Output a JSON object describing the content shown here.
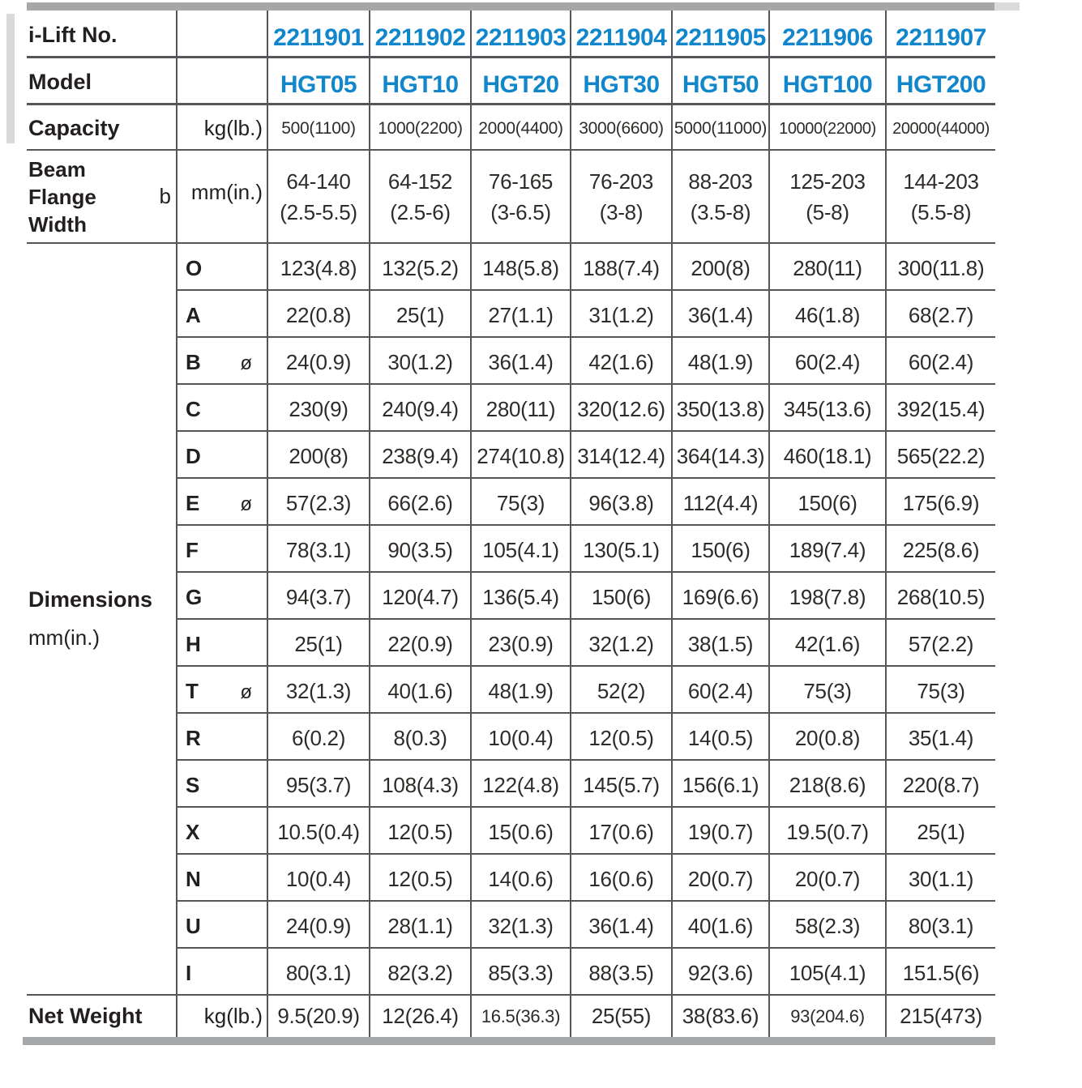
{
  "colors": {
    "accent_blue": "#1186cb",
    "text_black": "#231f20",
    "border_gray": "#55565a",
    "thick_bar_gray": "#a6a7a9",
    "edge_light_gray": "#d9dadb"
  },
  "symbols": {
    "diameter": "ø"
  },
  "table": {
    "header_rows": [
      {
        "label": "i-Lift No.",
        "unit": "",
        "values": [
          "2211901",
          "2211902",
          "2211903",
          "2211904",
          "2211905",
          "2211906",
          "2211907"
        ]
      },
      {
        "label": "Model",
        "unit": "",
        "values": [
          "HGT05",
          "HGT10",
          "HGT20",
          "HGT30",
          "HGT50",
          "HGT100",
          "HGT200"
        ]
      }
    ],
    "capacity": {
      "label": "Capacity",
      "unit": "kg(lb.)",
      "values": [
        "500(1100)",
        "1000(2200)",
        "2000(4400)",
        "3000(6600)",
        "5000(11000)",
        "10000(22000)",
        "20000(44000)"
      ]
    },
    "beam": {
      "lines": [
        "Beam",
        "Flange",
        "Width"
      ],
      "b": "b",
      "unit": "mm(in.)",
      "values": [
        [
          "64-140",
          "(2.5-5.5)"
        ],
        [
          "64-152",
          "(2.5-6)"
        ],
        [
          "76-165",
          "(3-6.5)"
        ],
        [
          "76-203",
          "(3-8)"
        ],
        [
          "88-203",
          "(3.5-8)"
        ],
        [
          "125-203",
          "(5-8)"
        ],
        [
          "144-203",
          "(5.5-8)"
        ]
      ]
    },
    "dimensions": {
      "label": "Dimensions",
      "unit": "mm(in.)",
      "rows": [
        {
          "letter": "O",
          "dia": false,
          "values": [
            "123(4.8)",
            "132(5.2)",
            "148(5.8)",
            "188(7.4)",
            "200(8)",
            "280(11)",
            "300(11.8)"
          ]
        },
        {
          "letter": "A",
          "dia": false,
          "values": [
            "22(0.8)",
            "25(1)",
            "27(1.1)",
            "31(1.2)",
            "36(1.4)",
            "46(1.8)",
            "68(2.7)"
          ]
        },
        {
          "letter": "B",
          "dia": true,
          "values": [
            "24(0.9)",
            "30(1.2)",
            "36(1.4)",
            "42(1.6)",
            "48(1.9)",
            "60(2.4)",
            "60(2.4)"
          ]
        },
        {
          "letter": "C",
          "dia": false,
          "values": [
            "230(9)",
            "240(9.4)",
            "280(11)",
            "320(12.6)",
            "350(13.8)",
            "345(13.6)",
            "392(15.4)"
          ]
        },
        {
          "letter": "D",
          "dia": false,
          "values": [
            "200(8)",
            "238(9.4)",
            "274(10.8)",
            "314(12.4)",
            "364(14.3)",
            "460(18.1)",
            "565(22.2)"
          ]
        },
        {
          "letter": "E",
          "dia": true,
          "values": [
            "57(2.3)",
            "66(2.6)",
            "75(3)",
            "96(3.8)",
            "112(4.4)",
            "150(6)",
            "175(6.9)"
          ]
        },
        {
          "letter": "F",
          "dia": false,
          "values": [
            "78(3.1)",
            "90(3.5)",
            "105(4.1)",
            "130(5.1)",
            "150(6)",
            "189(7.4)",
            "225(8.6)"
          ]
        },
        {
          "letter": "G",
          "dia": false,
          "values": [
            "94(3.7)",
            "120(4.7)",
            "136(5.4)",
            "150(6)",
            "169(6.6)",
            "198(7.8)",
            "268(10.5)"
          ]
        },
        {
          "letter": "H",
          "dia": false,
          "values": [
            "25(1)",
            "22(0.9)",
            "23(0.9)",
            "32(1.2)",
            "38(1.5)",
            "42(1.6)",
            "57(2.2)"
          ]
        },
        {
          "letter": "T",
          "dia": true,
          "values": [
            "32(1.3)",
            "40(1.6)",
            "48(1.9)",
            "52(2)",
            "60(2.4)",
            "75(3)",
            "75(3)"
          ]
        },
        {
          "letter": "R",
          "dia": false,
          "values": [
            "6(0.2)",
            "8(0.3)",
            "10(0.4)",
            "12(0.5)",
            "14(0.5)",
            "20(0.8)",
            "35(1.4)"
          ]
        },
        {
          "letter": "S",
          "dia": false,
          "values": [
            "95(3.7)",
            "108(4.3)",
            "122(4.8)",
            "145(5.7)",
            "156(6.1)",
            "218(8.6)",
            "220(8.7)"
          ]
        },
        {
          "letter": "X",
          "dia": false,
          "values": [
            "10.5(0.4)",
            "12(0.5)",
            "15(0.6)",
            "17(0.6)",
            "19(0.7)",
            "19.5(0.7)",
            "25(1)"
          ]
        },
        {
          "letter": "N",
          "dia": false,
          "values": [
            "10(0.4)",
            "12(0.5)",
            "14(0.6)",
            "16(0.6)",
            "20(0.7)",
            "20(0.7)",
            "30(1.1)"
          ]
        },
        {
          "letter": "U",
          "dia": false,
          "values": [
            "24(0.9)",
            "28(1.1)",
            "32(1.3)",
            "36(1.4)",
            "40(1.6)",
            "58(2.3)",
            "80(3.1)"
          ]
        },
        {
          "letter": "I",
          "dia": false,
          "values": [
            "80(3.1)",
            "82(3.2)",
            "85(3.3)",
            "88(3.5)",
            "92(3.6)",
            "105(4.1)",
            "151.5(6)"
          ]
        }
      ]
    },
    "net_weight": {
      "label": "Net Weight",
      "unit": "kg(lb.)",
      "values": [
        "9.5(20.9)",
        "12(26.4)",
        "16.5(36.3)",
        "25(55)",
        "38(83.6)",
        "93(204.6)",
        "215(473)"
      ]
    }
  }
}
